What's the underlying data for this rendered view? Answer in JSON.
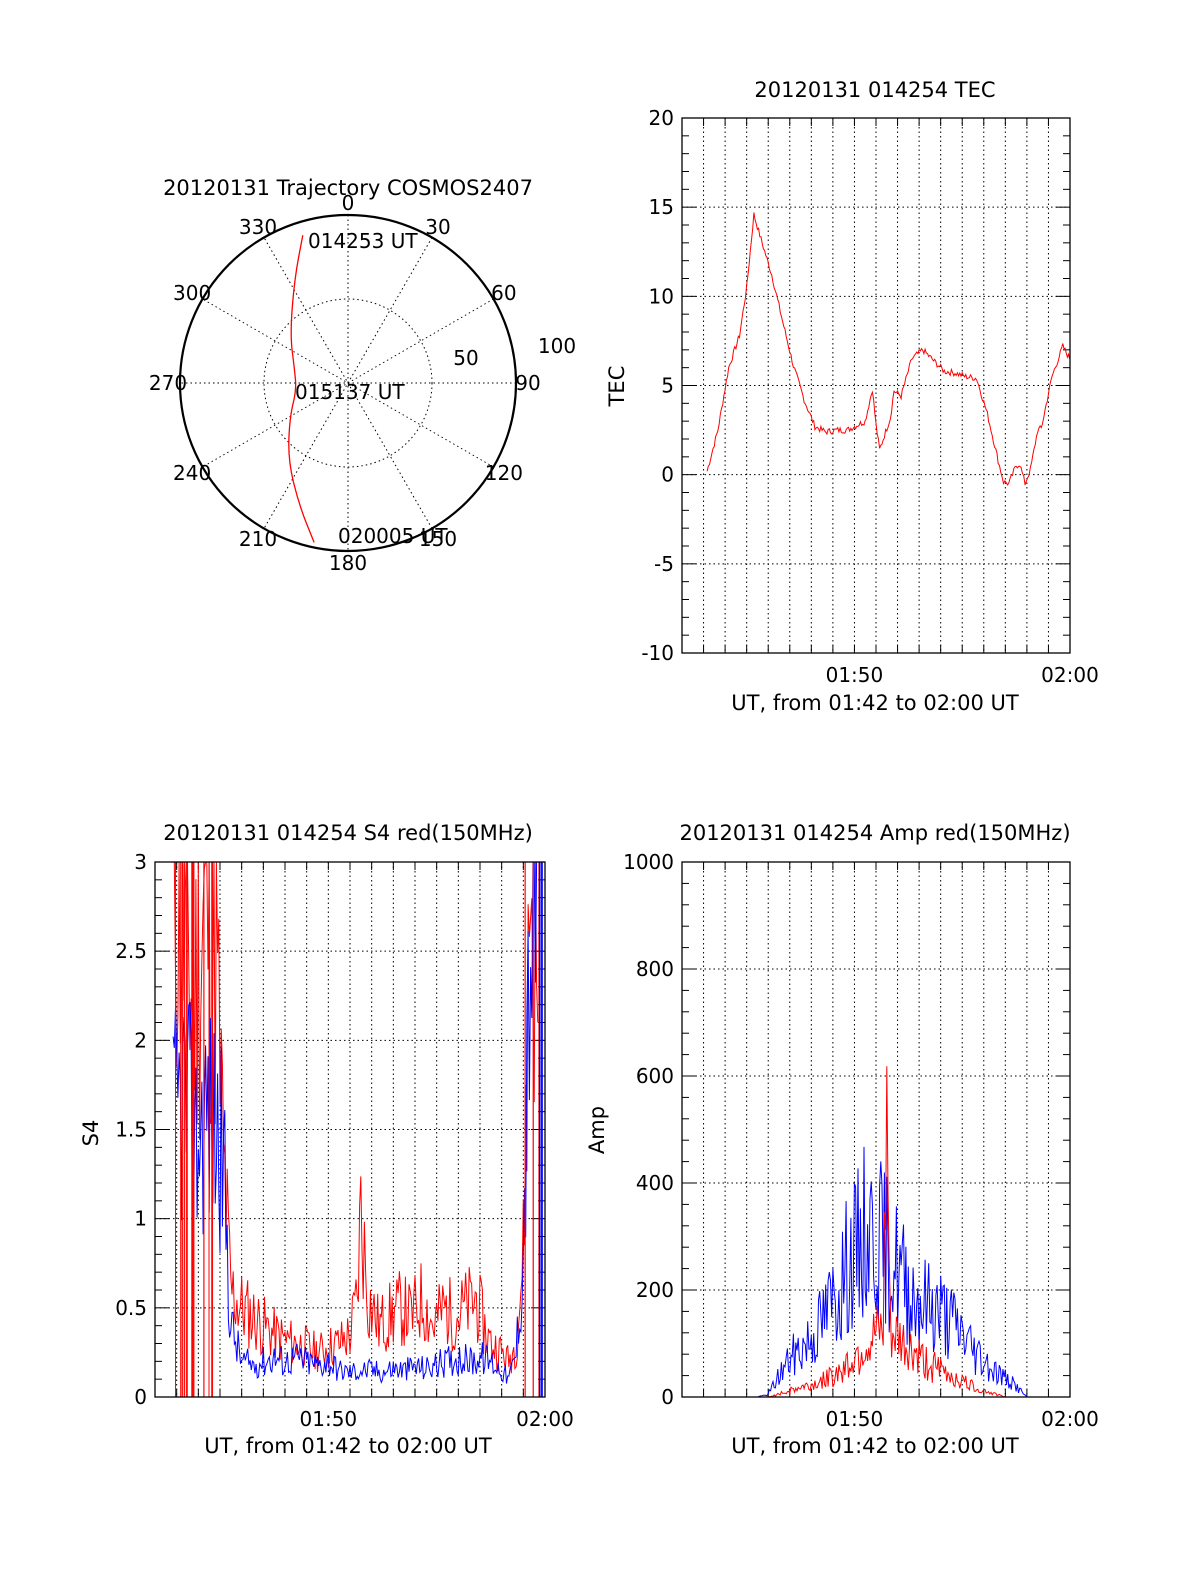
{
  "chart_data": [
    {
      "type": "polar",
      "title": "20120131 Trajectory COSMOS2407",
      "angle_labels": [
        "0",
        "30",
        "60",
        "90",
        "120",
        "150",
        "180",
        "210",
        "240",
        "270",
        "300",
        "330"
      ],
      "radius_labels": [
        "50",
        "100"
      ],
      "r_range": [
        0,
        100
      ],
      "annotations": [
        "014253 UT",
        "015137 UT",
        "020005 UT"
      ],
      "series": [
        {
          "color": "#ff0000",
          "points": [
            {
              "az": 343,
              "r": 92
            },
            {
              "az": 333,
              "r": 70
            },
            {
              "az": 310,
              "r": 45
            },
            {
              "az": 285,
              "r": 33
            },
            {
              "az": 262,
              "r": 31
            },
            {
              "az": 240,
              "r": 40
            },
            {
              "az": 218,
              "r": 58
            },
            {
              "az": 202,
              "r": 78
            },
            {
              "az": 192,
              "r": 97
            }
          ]
        }
      ]
    },
    {
      "type": "line",
      "title": "20120131 014254 TEC",
      "xlabel": "UT, from 01:42 to 02:00 UT",
      "ylabel": "TEC",
      "x_ticklabels": [
        "01:50",
        "02:00"
      ],
      "y_ticklabels": [
        "20",
        "15",
        "10",
        "5",
        "0",
        "-5",
        "-10"
      ],
      "xlim": [
        "01:42",
        "02:00"
      ],
      "ylim": [
        -10,
        20
      ],
      "grid": true,
      "series": [
        {
          "color": "#ff0000",
          "x": [
            "01:43:10",
            "01:43:40",
            "01:44:10",
            "01:44:40",
            "01:45:00",
            "01:45:20",
            "01:45:40",
            "01:46:10",
            "01:46:40",
            "01:47:10",
            "01:47:40",
            "01:48:10",
            "01:48:40",
            "01:49:10",
            "01:49:40",
            "01:50:10",
            "01:50:30",
            "01:50:50",
            "01:51:00",
            "01:51:10",
            "01:51:40",
            "01:51:50",
            "01:52:10",
            "01:52:40",
            "01:53:10",
            "01:53:40",
            "01:54:10",
            "01:54:40",
            "01:55:10",
            "01:55:40",
            "01:56:10",
            "01:56:40",
            "01:56:55",
            "01:57:10",
            "01:57:30",
            "01:57:40",
            "01:57:55",
            "01:58:10",
            "01:58:30",
            "01:58:40",
            "01:59:10",
            "01:59:40",
            "01:59:59"
          ],
          "y": [
            0.2,
            2.5,
            6.0,
            7.8,
            10.5,
            14.6,
            13.2,
            11.2,
            8.6,
            6.1,
            4.2,
            2.7,
            2.4,
            2.5,
            2.5,
            2.8,
            3.0,
            4.8,
            2.8,
            1.4,
            3.2,
            4.7,
            4.4,
            6.5,
            7.0,
            6.4,
            5.8,
            5.7,
            5.5,
            5.4,
            3.4,
            0.8,
            -0.4,
            -0.5,
            0.5,
            0.6,
            -0.5,
            0.3,
            2.5,
            2.6,
            5.5,
            7.2,
            6.5
          ]
        }
      ]
    },
    {
      "type": "line",
      "title": "20120131 014254 S4 red(150MHz)",
      "ylabel": "S4",
      "xlabel": "UT, from 01:42 to 02:00 UT",
      "x_ticklabels": [
        "01:50",
        "02:00"
      ],
      "y_ticklabels": [
        "3",
        "2.5",
        "2",
        "1.5",
        "1",
        "0.5",
        "0"
      ],
      "xlim": [
        "01:42",
        "02:00"
      ],
      "ylim": [
        0,
        3
      ],
      "grid": true,
      "series": [
        {
          "color": "#ff0000",
          "x": [
            "01:42:50",
            "01:43:20",
            "01:43:50",
            "01:44:20",
            "01:44:50",
            "01:45:10",
            "01:45:30",
            "01:46:00",
            "01:46:30",
            "01:47:00",
            "01:47:30",
            "01:48:00",
            "01:48:30",
            "01:49:00",
            "01:49:30",
            "01:50:00",
            "01:50:30",
            "01:51:00",
            "01:51:20",
            "01:51:30",
            "01:51:50",
            "01:52:20",
            "01:52:50",
            "01:53:20",
            "01:53:50",
            "01:54:20",
            "01:54:50",
            "01:55:20",
            "01:55:50",
            "01:56:20",
            "01:56:50",
            "01:57:10",
            "01:57:30",
            "01:58:00",
            "01:58:20",
            "01:58:40",
            "01:59:00",
            "01:59:20",
            "01:59:40"
          ],
          "y": [
            3.0,
            2.6,
            2.2,
            2.8,
            2.4,
            1.3,
            0.6,
            0.5,
            0.45,
            0.4,
            0.35,
            0.32,
            0.3,
            0.28,
            0.25,
            0.28,
            0.3,
            0.35,
            0.55,
            1.05,
            0.55,
            0.4,
            0.45,
            0.5,
            0.45,
            0.55,
            0.4,
            0.5,
            0.45,
            0.5,
            0.55,
            0.4,
            0.3,
            0.25,
            0.2,
            0.3,
            0.8,
            3.0,
            2.1
          ]
        },
        {
          "color": "#0000ff",
          "x": [
            "01:42:50",
            "01:43:20",
            "01:43:50",
            "01:44:20",
            "01:44:50",
            "01:45:10",
            "01:45:30",
            "01:46:00",
            "01:46:30",
            "01:47:00",
            "01:47:30",
            "01:48:00",
            "01:48:30",
            "01:49:00",
            "01:49:30",
            "01:50:00",
            "01:50:30",
            "01:51:00",
            "01:51:30",
            "01:52:00",
            "01:52:30",
            "01:53:00",
            "01:53:30",
            "01:54:00",
            "01:54:30",
            "01:55:00",
            "01:55:30",
            "01:56:00",
            "01:56:30",
            "01:57:00",
            "01:57:30",
            "01:58:00",
            "01:58:20",
            "01:58:40",
            "01:59:00",
            "01:59:20",
            "01:59:40"
          ],
          "y": [
            1.5,
            1.7,
            1.4,
            1.6,
            1.5,
            1.3,
            0.4,
            0.2,
            0.18,
            0.2,
            0.22,
            0.2,
            0.22,
            0.2,
            0.18,
            0.2,
            0.15,
            0.14,
            0.15,
            0.15,
            0.14,
            0.16,
            0.15,
            0.17,
            0.16,
            0.18,
            0.2,
            0.22,
            0.2,
            0.22,
            0.2,
            0.15,
            0.1,
            0.25,
            0.8,
            2.6,
            3.0
          ]
        }
      ]
    },
    {
      "type": "line",
      "title": "20120131 014254 Amp red(150MHz)",
      "ylabel": "Amp",
      "xlabel": "UT, from 01:42 to 02:00 UT",
      "x_ticklabels": [
        "01:50",
        "02:00"
      ],
      "y_ticklabels": [
        "1000",
        "800",
        "600",
        "400",
        "200",
        "0"
      ],
      "xlim": [
        "01:42",
        "02:00"
      ],
      "ylim": [
        0,
        1000
      ],
      "grid": true,
      "series": [
        {
          "color": "#0000ff",
          "x": [
            "01:43:00",
            "01:44:00",
            "01:45:00",
            "01:45:30",
            "01:46:00",
            "01:46:30",
            "01:47:00",
            "01:47:30",
            "01:48:00",
            "01:48:30",
            "01:49:00",
            "01:49:30",
            "01:50:00",
            "01:50:30",
            "01:51:00",
            "01:51:30",
            "01:52:00",
            "01:52:30",
            "01:53:00",
            "01:53:30",
            "01:54:00",
            "01:54:30",
            "01:55:00",
            "01:55:30",
            "01:56:00",
            "01:56:30",
            "01:57:00",
            "01:57:30",
            "01:58:00",
            "01:59:00",
            "02:00:00"
          ],
          "y": [
            0,
            0,
            0,
            0,
            5,
            40,
            70,
            90,
            110,
            140,
            180,
            230,
            260,
            310,
            300,
            270,
            240,
            200,
            180,
            170,
            160,
            140,
            120,
            90,
            70,
            50,
            35,
            20,
            0,
            0,
            0
          ]
        },
        {
          "color": "#ff0000",
          "x": [
            "01:43:00",
            "01:45:00",
            "01:46:00",
            "01:46:30",
            "01:47:00",
            "01:47:30",
            "01:48:00",
            "01:48:30",
            "01:49:00",
            "01:49:30",
            "01:50:00",
            "01:50:30",
            "01:51:00",
            "01:51:20",
            "01:51:30",
            "01:51:40",
            "01:52:00",
            "01:52:30",
            "01:53:00",
            "01:53:30",
            "01:54:00",
            "01:54:30",
            "01:55:00",
            "01:55:30",
            "01:56:00",
            "01:56:30",
            "01:57:00",
            "01:58:00",
            "02:00:00"
          ],
          "y": [
            0,
            0,
            0,
            5,
            12,
            18,
            22,
            30,
            40,
            55,
            75,
            95,
            110,
            115,
            500,
            110,
            105,
            90,
            75,
            60,
            50,
            40,
            30,
            20,
            12,
            6,
            0,
            0,
            0
          ]
        }
      ]
    }
  ]
}
